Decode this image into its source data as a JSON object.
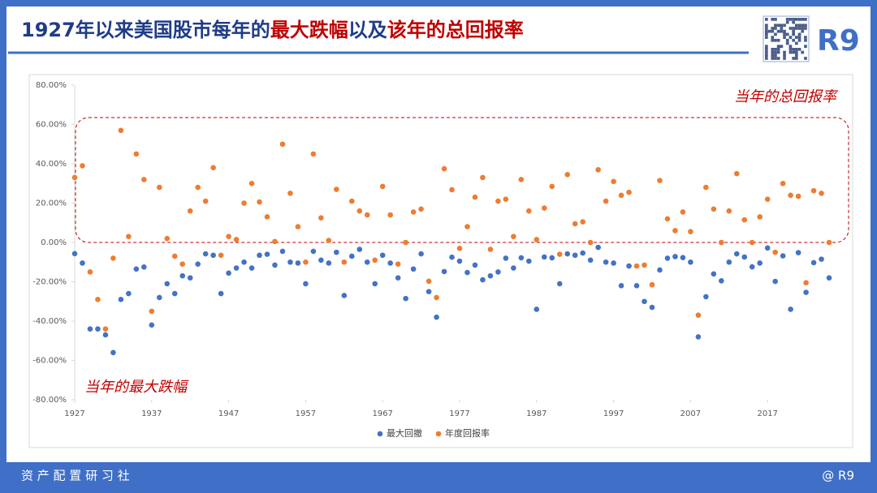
{
  "header": {
    "title_parts": [
      "1927年以来美国股市每年的",
      "最大跌幅",
      "以及",
      "该年的总回报率"
    ],
    "brand": "R9"
  },
  "footer": {
    "left": "资 产 配 置 研 习 社",
    "right": "@ R9"
  },
  "chart_data": {
    "type": "scatter",
    "x": [
      1927,
      1928,
      1929,
      1930,
      1931,
      1932,
      1933,
      1934,
      1935,
      1936,
      1937,
      1938,
      1939,
      1940,
      1941,
      1942,
      1943,
      1944,
      1945,
      1946,
      1947,
      1948,
      1949,
      1950,
      1951,
      1952,
      1953,
      1954,
      1955,
      1956,
      1957,
      1958,
      1959,
      1960,
      1961,
      1962,
      1963,
      1964,
      1965,
      1966,
      1967,
      1968,
      1969,
      1970,
      1971,
      1972,
      1973,
      1974,
      1975,
      1976,
      1977,
      1978,
      1979,
      1980,
      1981,
      1982,
      1983,
      1984,
      1985,
      1986,
      1987,
      1988,
      1989,
      1990,
      1991,
      1992,
      1993,
      1994,
      1995,
      1996,
      1997,
      1998,
      1999,
      2000,
      2001,
      2002,
      2003,
      2004,
      2005,
      2006,
      2007,
      2008,
      2009,
      2010,
      2011,
      2012,
      2013,
      2014,
      2015,
      2016,
      2017,
      2018,
      2019,
      2020,
      2021,
      2022,
      2023,
      2024,
      2025
    ],
    "series": [
      {
        "name": "最大回撤",
        "color": "#4472c4",
        "values": [
          -5.7,
          -10.5,
          -44,
          -44,
          -47,
          -56,
          -29,
          -26,
          -13.5,
          -12.5,
          -42,
          -28,
          -21,
          -26,
          -17,
          -18,
          -11,
          -5.8,
          -6.5,
          -26,
          -15.6,
          -13,
          -10,
          -13,
          -6.5,
          -6,
          -11.5,
          -4.5,
          -10,
          -10.5,
          -21,
          -4.5,
          -9,
          -10.5,
          -5,
          -27,
          -7,
          -3.5,
          -10,
          -21,
          -6.5,
          -10.5,
          -18,
          -28.5,
          -13.5,
          -5.8,
          -25,
          -38,
          -14.8,
          -7.5,
          -9.5,
          -15.3,
          -11.5,
          -19,
          -17,
          -15,
          -8,
          -13,
          -7.8,
          -9.5,
          -34,
          -7.4,
          -7.8,
          -21,
          -5.8,
          -6.5,
          -5.4,
          -9,
          -2.5,
          -10,
          -10.5,
          -22,
          -12,
          -22,
          -30,
          -33,
          -14,
          -8,
          -7.2,
          -7.7,
          -10,
          -48,
          -27.6,
          -16,
          -19.5,
          -10,
          -5.8,
          -7.4,
          -12.4,
          -10.5,
          -2.8,
          -19.8,
          -6.8,
          -34,
          -5.2,
          -25.4,
          -10.3,
          -8.5,
          -18
        ]
      },
      {
        "name": "年度回报率",
        "color": "#ed7d31",
        "values": [
          33,
          39,
          -15,
          -29,
          -44,
          -8,
          57,
          3,
          45,
          32,
          -35,
          28,
          2,
          -7,
          -11,
          16,
          28,
          21,
          38,
          -6.5,
          3,
          1.5,
          20,
          30,
          20.6,
          13,
          0.5,
          50,
          25,
          8,
          -10,
          45,
          12.5,
          1,
          27,
          -10,
          21,
          16,
          14,
          -9,
          28.5,
          14,
          -11,
          0,
          15.5,
          17,
          -19.7,
          -28,
          37.5,
          26.8,
          -3,
          8,
          23,
          33,
          -3.5,
          21,
          22,
          3,
          32,
          16,
          1.5,
          17.5,
          28.5,
          -6,
          34.5,
          9.5,
          10.5,
          0,
          37,
          21,
          31,
          24,
          25.5,
          -12,
          -11.5,
          -21.5,
          31.5,
          12,
          6,
          15.5,
          5.5,
          -37,
          28,
          17,
          0,
          16,
          35,
          11.5,
          0,
          13,
          22,
          -5,
          30,
          24,
          23.5,
          -20.5,
          26.3,
          25,
          0
        ]
      }
    ],
    "xlim": [
      1927,
      2027
    ],
    "xticks": [
      1927,
      1937,
      1947,
      1957,
      1967,
      1977,
      1987,
      1997,
      2007,
      2017
    ],
    "ylim": [
      -80,
      80
    ],
    "yticks": [
      {
        "value": -80,
        "label": "-80.00%"
      },
      {
        "value": -60,
        "label": "-60.00%"
      },
      {
        "value": -40,
        "label": "-40.00%"
      },
      {
        "value": -20,
        "label": "-20.00%"
      },
      {
        "value": 0,
        "label": "0.00%"
      },
      {
        "value": 20,
        "label": "20.00%"
      },
      {
        "value": 40,
        "label": "40.00%"
      },
      {
        "value": 60,
        "label": "60.00%"
      },
      {
        "value": 80,
        "label": "80.00%"
      }
    ],
    "annotations": [
      "当年的总回报率",
      "当年的最大跌幅"
    ],
    "legend": "bottom"
  }
}
